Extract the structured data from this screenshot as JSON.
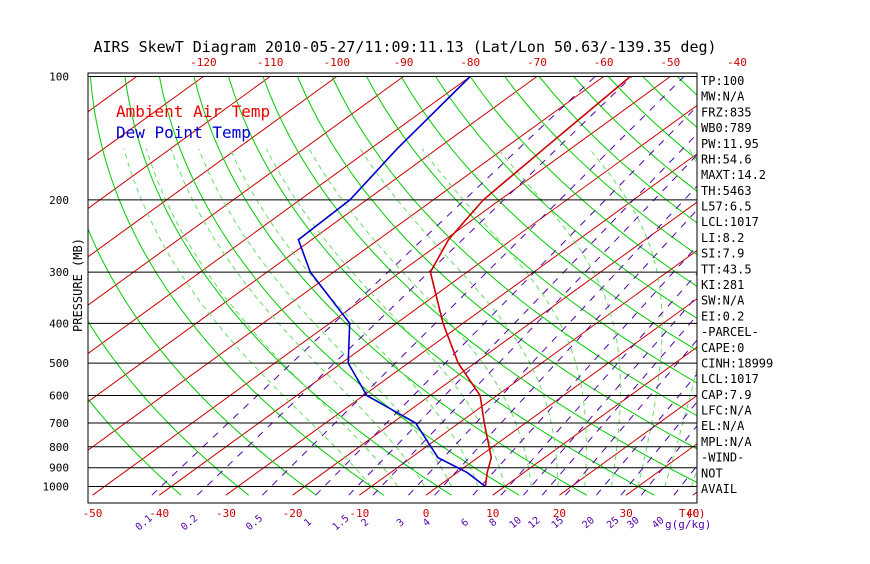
{
  "chart_data": {
    "type": "line",
    "title": "AIRS SkewT Diagram 2010-05-27/11:09:11.13 (Lat/Lon 50.63/-139.35 deg)",
    "ylabel": "PRESSURE (MB)",
    "xlabel": "T(C)",
    "mixing_ratio_label": "g(g/kg)",
    "y_scale": "log",
    "ylim": [
      1050,
      100
    ],
    "pressure_ticks": [
      100,
      200,
      300,
      400,
      500,
      600,
      700,
      800,
      900,
      1000
    ],
    "top_temp_ticks": [
      -120,
      -110,
      -100,
      -90,
      -80,
      -70,
      -60,
      -50,
      -40
    ],
    "bottom_temp_ticks": [
      -50,
      -40,
      -30,
      -20,
      -10,
      0,
      10,
      20,
      30,
      40
    ],
    "mixing_ratio_ticks": [
      "0.1",
      "0.2",
      "0.5",
      "1",
      "1.5",
      "2",
      "3",
      "4",
      "6",
      "8",
      "10",
      "12",
      "15",
      "20",
      "25",
      "30",
      "40"
    ],
    "mixing_ratio_values": [
      0.1,
      0.2,
      0.5,
      1,
      1.5,
      2,
      3,
      4,
      6,
      8,
      10,
      12,
      15,
      20,
      25,
      30,
      40
    ],
    "legend": [
      {
        "label": "Ambient Air Temp",
        "color": "#ee0000"
      },
      {
        "label": "Dew Point Temp",
        "color": "#0000cc"
      }
    ],
    "series": [
      {
        "name": "Ambient Air Temp",
        "color": "#cc0000",
        "points": [
          {
            "p": 1000,
            "t": 7.1
          },
          {
            "p": 925,
            "t": 4.5
          },
          {
            "p": 850,
            "t": 2.0
          },
          {
            "p": 700,
            "t": -6.2
          },
          {
            "p": 600,
            "t": -12.5
          },
          {
            "p": 500,
            "t": -22.5
          },
          {
            "p": 400,
            "t": -33.0
          },
          {
            "p": 300,
            "t": -45.5
          },
          {
            "p": 250,
            "t": -49.5
          },
          {
            "p": 200,
            "t": -52.5
          },
          {
            "p": 150,
            "t": -54.0
          },
          {
            "p": 100,
            "t": -56.0
          }
        ]
      },
      {
        "name": "Dew Point Temp",
        "color": "#0000cc",
        "points": [
          {
            "p": 1000,
            "t": 7.1
          },
          {
            "p": 925,
            "t": 1.5
          },
          {
            "p": 850,
            "t": -6.0
          },
          {
            "p": 700,
            "t": -16.5
          },
          {
            "p": 600,
            "t": -29.5
          },
          {
            "p": 500,
            "t": -39.0
          },
          {
            "p": 400,
            "t": -47.0
          },
          {
            "p": 300,
            "t": -63.5
          },
          {
            "p": 250,
            "t": -72.0
          },
          {
            "p": 200,
            "t": -72.5
          },
          {
            "p": 150,
            "t": -76.0
          },
          {
            "p": 100,
            "t": -80.0
          }
        ]
      }
    ],
    "indices": [
      "TP:100",
      "MW:N/A",
      "FRZ:835",
      "WB0:789",
      "PW:11.95",
      "RH:54.6",
      "MAXT:14.2",
      "TH:5463",
      "L57:6.5",
      "LCL:1017",
      "LI:8.2",
      "SI:7.9",
      "TT:43.5",
      "KI:281",
      "SW:N/A",
      "EI:0.2",
      "-PARCEL-",
      "CAPE:0",
      "CINH:18999",
      "LCL:1017",
      "CAP:7.9",
      "LFC:N/A",
      "EL:N/A",
      "MPL:N/A",
      "-WIND-",
      "NOT",
      "AVAIL"
    ],
    "colors": {
      "isotherm": "#cc0000",
      "dry_adiabat": "#00cc00",
      "moist_adiabat": "#66dd66",
      "mixing_ratio": "#5500aa",
      "temperature": "#cc0000",
      "dewpoint": "#0000cc",
      "isobar": "#000000",
      "tick_label": "#cc0000",
      "mixing_label": "#5500aa"
    },
    "grid": true,
    "legend_placement": "top-left"
  }
}
